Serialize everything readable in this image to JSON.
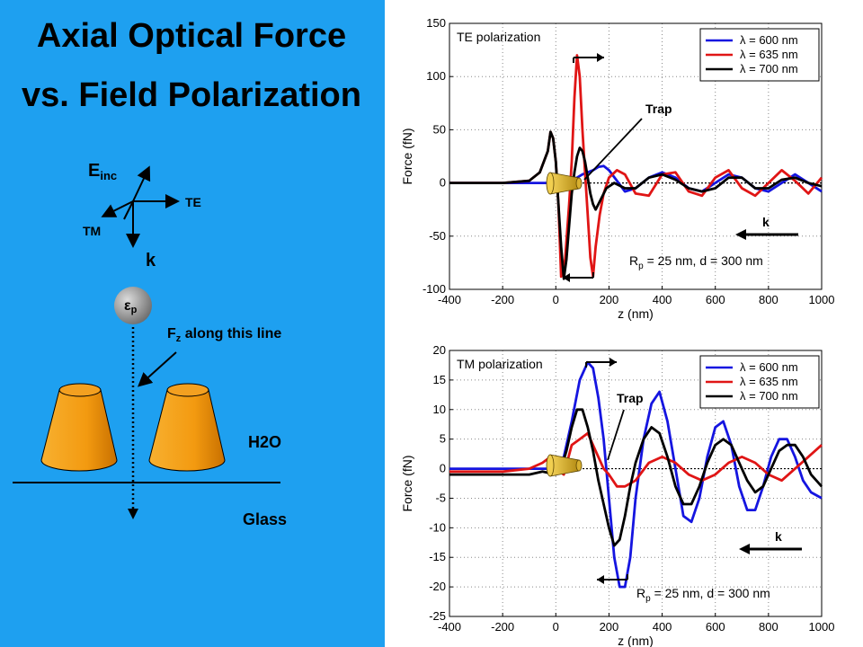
{
  "title": {
    "line1": "Axial Optical Force",
    "line2": "vs. Field Polarization"
  },
  "schematic": {
    "field_label": "E",
    "field_sub": "inc",
    "te_label": "TE",
    "tm_label": "TM",
    "k_label": "k",
    "particle_label": "ε",
    "particle_sub": "p",
    "fz_label": "F",
    "fz_sub": "z",
    "fz_rest": " along this line",
    "medium_label": "H2O",
    "substrate_label": "Glass"
  },
  "colors": {
    "blue": "#1515e0",
    "red": "#e01515",
    "black": "#000000",
    "panel": "#1ea0f0",
    "cone": "#f39a10"
  },
  "chart_data": [
    {
      "type": "line",
      "title": "TE polarization",
      "xlabel": "z (nm)",
      "ylabel": "Force (fN)",
      "xlim": [
        -400,
        1000
      ],
      "ylim": [
        -100,
        150
      ],
      "xticks": [
        -400,
        -200,
        0,
        200,
        400,
        600,
        800,
        1000
      ],
      "yticks": [
        -100,
        -50,
        0,
        50,
        100,
        150
      ],
      "grid": true,
      "legend": "top-right",
      "annotations": {
        "trap": "Trap",
        "k": "k",
        "params_main": "R",
        "params_sub": "p",
        "params_rest": " = 25 nm, d = 300 nm"
      },
      "series": [
        {
          "name": "λ = 600 nm",
          "color": "blue",
          "x": [
            -400,
            -200,
            -100,
            -50,
            -20,
            0,
            20,
            40,
            60,
            80,
            100,
            120,
            140,
            160,
            180,
            200,
            230,
            260,
            300,
            350,
            400,
            450,
            500,
            550,
            600,
            650,
            700,
            750,
            800,
            850,
            900,
            950,
            1000
          ],
          "y": [
            0,
            0,
            0,
            0,
            0,
            0,
            0,
            0,
            3,
            5,
            8,
            10,
            12,
            15,
            16,
            12,
            2,
            -8,
            -5,
            5,
            10,
            5,
            -5,
            -8,
            0,
            8,
            5,
            -5,
            -8,
            0,
            8,
            0,
            -8
          ]
        },
        {
          "name": "λ = 635 nm",
          "color": "red",
          "x": [
            -400,
            -200,
            -100,
            -60,
            -30,
            -20,
            -10,
            0,
            10,
            20,
            35,
            50,
            60,
            70,
            80,
            90,
            100,
            110,
            120,
            130,
            140,
            150,
            165,
            180,
            200,
            230,
            260,
            300,
            350,
            400,
            450,
            500,
            550,
            600,
            650,
            700,
            750,
            800,
            850,
            900,
            950,
            1000
          ],
          "y": [
            0,
            0,
            2,
            10,
            30,
            48,
            42,
            20,
            -20,
            -88,
            -72,
            -20,
            20,
            80,
            120,
            100,
            50,
            10,
            -30,
            -70,
            -88,
            -60,
            -30,
            -10,
            5,
            12,
            8,
            -10,
            -12,
            8,
            10,
            -8,
            -12,
            5,
            12,
            -5,
            -12,
            0,
            12,
            2,
            -10,
            5
          ]
        },
        {
          "name": "λ = 700 nm",
          "color": "black",
          "x": [
            -400,
            -200,
            -100,
            -60,
            -30,
            -20,
            -10,
            0,
            10,
            20,
            30,
            40,
            50,
            60,
            70,
            80,
            90,
            100,
            110,
            120,
            130,
            140,
            150,
            170,
            190,
            220,
            260,
            300,
            350,
            400,
            450,
            500,
            550,
            600,
            650,
            700,
            750,
            800,
            850,
            900,
            950,
            1000
          ],
          "y": [
            0,
            0,
            2,
            10,
            30,
            48,
            42,
            20,
            -20,
            -60,
            -90,
            -72,
            -40,
            -10,
            10,
            25,
            33,
            30,
            20,
            5,
            -10,
            -20,
            -25,
            -15,
            -5,
            0,
            -5,
            -5,
            5,
            8,
            3,
            -5,
            -8,
            -5,
            5,
            5,
            -5,
            -5,
            3,
            5,
            0,
            -3
          ]
        }
      ]
    },
    {
      "type": "line",
      "title": "TM polarization",
      "xlabel": "z (nm)",
      "ylabel": "Force (fN)",
      "xlim": [
        -400,
        1000
      ],
      "ylim": [
        -25,
        20
      ],
      "xticks": [
        -400,
        -200,
        0,
        200,
        400,
        600,
        800,
        1000
      ],
      "yticks": [
        -25,
        -20,
        -15,
        -10,
        -5,
        0,
        5,
        10,
        15,
        20
      ],
      "grid": true,
      "legend": "top-right",
      "annotations": {
        "trap": "Trap",
        "k": "k",
        "params_main": "R",
        "params_sub": "p",
        "params_rest": " = 25 nm, d = 300 nm"
      },
      "series": [
        {
          "name": "λ = 600 nm",
          "color": "blue",
          "x": [
            -400,
            -200,
            -100,
            -50,
            0,
            30,
            60,
            90,
            120,
            140,
            160,
            180,
            200,
            220,
            240,
            260,
            280,
            300,
            330,
            360,
            390,
            420,
            450,
            480,
            510,
            540,
            570,
            600,
            630,
            660,
            690,
            720,
            750,
            780,
            810,
            840,
            870,
            900,
            930,
            960,
            1000
          ],
          "y": [
            0,
            0,
            0,
            0,
            0,
            2,
            8,
            15,
            18,
            17,
            12,
            5,
            -5,
            -15,
            -20,
            -20,
            -15,
            -5,
            5,
            11,
            13,
            8,
            0,
            -8,
            -9,
            -5,
            2,
            7,
            8,
            4,
            -3,
            -7,
            -7,
            -3,
            2,
            5,
            5,
            2,
            -2,
            -4,
            -5
          ]
        },
        {
          "name": "λ = 635 nm",
          "color": "red",
          "x": [
            -400,
            -200,
            -100,
            -50,
            -20,
            0,
            30,
            60,
            90,
            120,
            150,
            180,
            200,
            230,
            260,
            300,
            350,
            400,
            450,
            500,
            550,
            600,
            650,
            700,
            750,
            800,
            850,
            900,
            950,
            1000
          ],
          "y": [
            -0.5,
            -0.5,
            0,
            1,
            2,
            0,
            -1,
            4,
            5,
            6,
            3,
            0,
            -1,
            -3,
            -3,
            -2,
            1,
            2,
            1,
            -1,
            -2,
            -1,
            1,
            2,
            1,
            -1,
            -2,
            0,
            2,
            4
          ]
        },
        {
          "name": "λ = 700 nm",
          "color": "black",
          "x": [
            -400,
            -200,
            -100,
            -50,
            0,
            20,
            40,
            60,
            80,
            100,
            120,
            140,
            160,
            180,
            200,
            220,
            240,
            260,
            280,
            300,
            330,
            360,
            390,
            420,
            450,
            480,
            510,
            540,
            570,
            600,
            630,
            660,
            690,
            720,
            750,
            780,
            810,
            840,
            870,
            900,
            930,
            960,
            1000
          ],
          "y": [
            -1,
            -1,
            -1,
            -0.5,
            -1,
            0,
            3,
            7,
            10,
            10,
            7,
            3,
            -2,
            -6,
            -10,
            -13,
            -12,
            -8,
            -3,
            1,
            5,
            7,
            6,
            2,
            -3,
            -6,
            -6,
            -3,
            1,
            4,
            5,
            4,
            1,
            -2,
            -4,
            -3,
            0,
            3,
            4,
            4,
            2,
            -1,
            -3
          ]
        }
      ]
    }
  ]
}
